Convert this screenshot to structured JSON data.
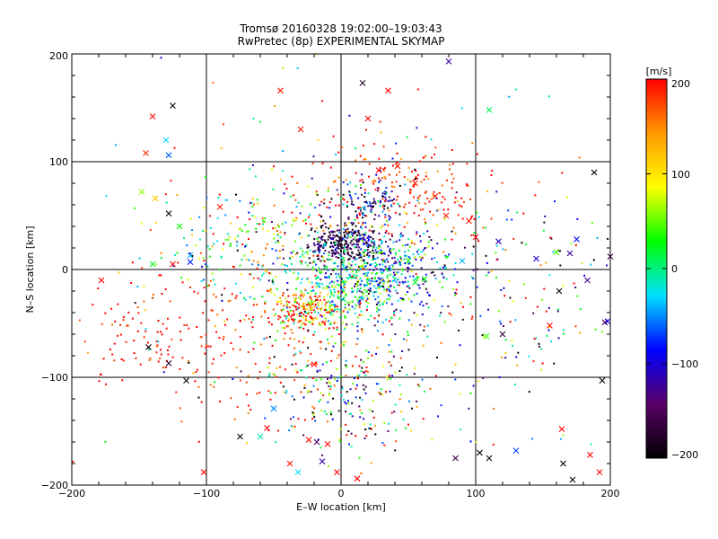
{
  "chart_data": {
    "type": "scatter",
    "title": "Tromsø 20160328 19:02:00–19:03:43",
    "subtitle": "RwPretec (8p) EXPERIMENTAL SKYMAP",
    "xlabel": "E–W location [km]",
    "ylabel": "N–S location [km]",
    "xlim": [
      -200,
      200
    ],
    "ylim": [
      -200,
      200
    ],
    "xticks": [
      "−200",
      "−100",
      "0",
      "100",
      "200"
    ],
    "yticks": [
      "−200",
      "−100",
      "0",
      "100",
      "200"
    ],
    "grid": true,
    "colorbar": {
      "label": "[m/s]",
      "range": [
        -200,
        200
      ],
      "ticks": [
        "200",
        "100",
        "0",
        "−100",
        "−200"
      ],
      "colormap": [
        "#000000",
        "#5a0066",
        "#0000ff",
        "#00e0ff",
        "#00ff00",
        "#ffff00",
        "#ff9900",
        "#ff0000"
      ]
    },
    "series": [
      {
        "marker": "x",
        "points": [
          [
            -140,
            142,
            195
          ],
          [
            -125,
            152,
            -190
          ],
          [
            -130,
            120,
            -30
          ],
          [
            -128,
            106,
            -60
          ],
          [
            -145,
            108,
            185
          ],
          [
            -148,
            72,
            60
          ],
          [
            -138,
            66,
            120
          ],
          [
            -128,
            52,
            -200
          ],
          [
            -120,
            40,
            30
          ],
          [
            -112,
            13,
            -40
          ],
          [
            -112,
            7,
            -80
          ],
          [
            -125,
            5,
            200
          ],
          [
            -140,
            5,
            20
          ],
          [
            -178,
            -10,
            200
          ],
          [
            -143,
            -72,
            -200
          ],
          [
            -128,
            -87,
            -180
          ],
          [
            -115,
            -103,
            -200
          ],
          [
            -102,
            -188,
            200
          ],
          [
            -90,
            58,
            190
          ],
          [
            -75,
            -155,
            -190
          ],
          [
            -60,
            -155,
            -10
          ],
          [
            -55,
            -147,
            200
          ],
          [
            -50,
            -129,
            -50
          ],
          [
            -38,
            -180,
            190
          ],
          [
            -32,
            -188,
            -30
          ],
          [
            -24,
            -158,
            200
          ],
          [
            -18,
            -160,
            -150
          ],
          [
            -14,
            -178,
            -120
          ],
          [
            -10,
            -162,
            200
          ],
          [
            -3,
            -188,
            200
          ],
          [
            12,
            -194,
            200
          ],
          [
            16,
            173,
            -180
          ],
          [
            35,
            166,
            195
          ],
          [
            50,
            8,
            30
          ],
          [
            55,
            -12,
            20
          ],
          [
            62,
            -9,
            25
          ],
          [
            80,
            193,
            -120
          ],
          [
            90,
            8,
            -40
          ],
          [
            108,
            -62,
            40
          ],
          [
            103,
            -170,
            -200
          ],
          [
            85,
            -175,
            -160
          ],
          [
            110,
            148,
            10
          ],
          [
            110,
            -175,
            -190
          ],
          [
            117,
            26,
            -110
          ],
          [
            120,
            -60,
            -170
          ],
          [
            130,
            -168,
            -70
          ],
          [
            145,
            10,
            -100
          ],
          [
            155,
            -52,
            200
          ],
          [
            160,
            16,
            45
          ],
          [
            162,
            -20,
            -190
          ],
          [
            164,
            -148,
            200
          ],
          [
            165,
            -180,
            -200
          ],
          [
            170,
            15,
            -120
          ],
          [
            172,
            -195,
            -200
          ],
          [
            175,
            28,
            -90
          ],
          [
            183,
            -10,
            -130
          ],
          [
            185,
            -172,
            200
          ],
          [
            192,
            -188,
            200
          ],
          [
            194,
            -103,
            -200
          ],
          [
            196,
            -49,
            -150
          ],
          [
            198,
            -48,
            -90
          ],
          [
            200,
            12,
            -160
          ],
          [
            188,
            90,
            -200
          ],
          [
            -20,
            -88,
            200
          ],
          [
            -45,
            166,
            190
          ],
          [
            -30,
            130,
            190
          ],
          [
            20,
            140,
            200
          ],
          [
            28,
            92,
            200
          ],
          [
            42,
            96,
            190
          ],
          [
            55,
            80,
            190
          ],
          [
            70,
            68,
            195
          ],
          [
            78,
            50,
            190
          ],
          [
            95,
            45,
            195
          ],
          [
            100,
            30,
            200
          ]
        ]
      },
      {
        "marker": "dot",
        "clusters": [
          {
            "cx": 0,
            "cy": 25,
            "sx": 12,
            "sy": 9,
            "n": 260,
            "vmean": -170,
            "vsd": 40
          },
          {
            "cx": 22,
            "cy": 62,
            "sx": 14,
            "sy": 10,
            "n": 120,
            "vmean": -110,
            "vsd": 70
          },
          {
            "cx": 30,
            "cy": 0,
            "sx": 26,
            "sy": 20,
            "n": 430,
            "vmean": -60,
            "vsd": 70
          },
          {
            "cx": 0,
            "cy": -15,
            "sx": 22,
            "sy": 18,
            "n": 260,
            "vmean": 10,
            "vsd": 45
          },
          {
            "cx": -28,
            "cy": -38,
            "sx": 12,
            "sy": 9,
            "n": 180,
            "vmean": 150,
            "vsd": 80
          },
          {
            "cx": 45,
            "cy": 75,
            "sx": 40,
            "sy": 24,
            "n": 200,
            "vmean": 185,
            "vsd": 25
          },
          {
            "cx": -60,
            "cy": 25,
            "sx": 38,
            "sy": 30,
            "n": 240,
            "vmean": 40,
            "vsd": 100
          },
          {
            "cx": -75,
            "cy": -65,
            "sx": 50,
            "sy": 35,
            "n": 200,
            "vmean": 190,
            "vsd": 25
          },
          {
            "cx": 0,
            "cy": -110,
            "sx": 32,
            "sy": 30,
            "n": 240,
            "vmean": 20,
            "vsd": 140
          },
          {
            "cx": 120,
            "cy": -40,
            "sx": 55,
            "sy": 50,
            "n": 150,
            "vmean": -40,
            "vsd": 150
          },
          {
            "cx": -150,
            "cy": -60,
            "sx": 25,
            "sy": 22,
            "n": 50,
            "vmean": 195,
            "vsd": 15
          },
          {
            "cx": 0,
            "cy": 0,
            "sx": 95,
            "sy": 90,
            "n": 260,
            "vmean": 60,
            "vsd": 150
          }
        ]
      }
    ]
  }
}
